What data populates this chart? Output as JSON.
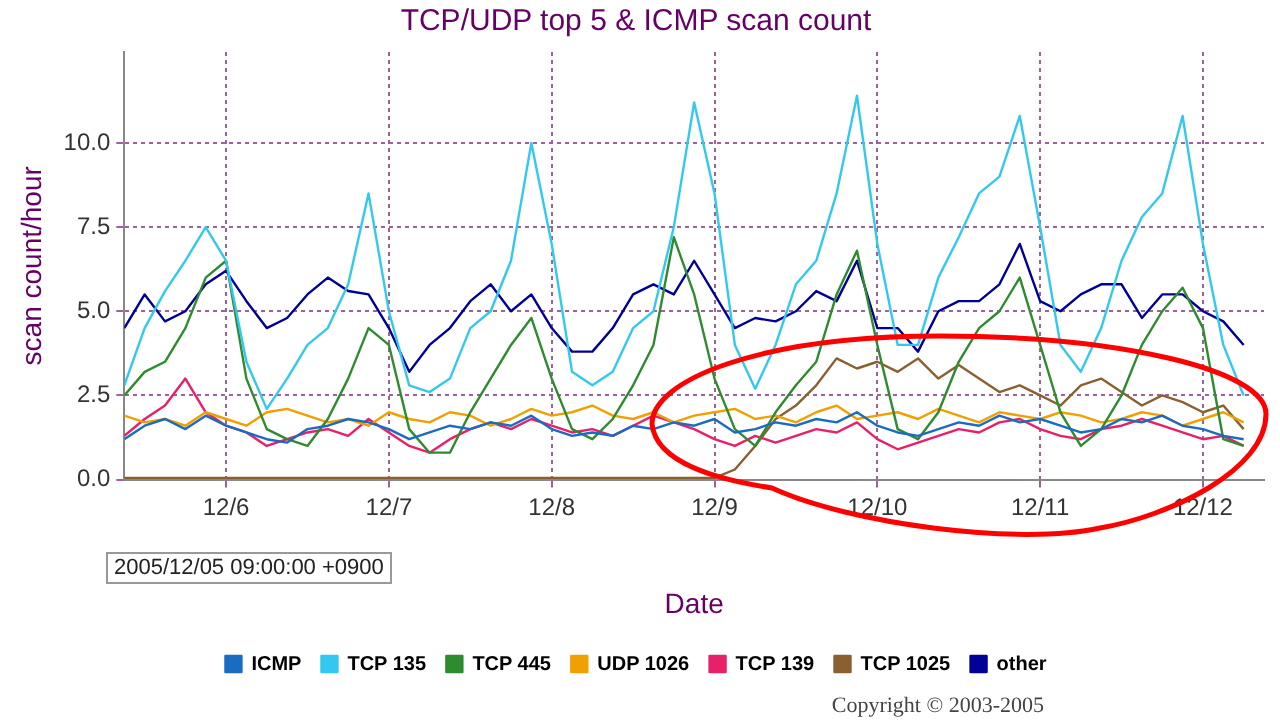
{
  "chart_data": {
    "type": "line",
    "title": "TCP/UDP top 5 & ICMP scan count",
    "xlabel": "Date",
    "ylabel": "scan count/hour",
    "annotations": [
      "2005/12/05 09:00:00 +0900",
      "Copyright © 2003-2005"
    ],
    "x": [
      "2005-12-05T09:00",
      "2005-12-05T12:00",
      "2005-12-05T15:00",
      "2005-12-05T18:00",
      "2005-12-05T21:00",
      "2005-12-06T00:00",
      "2005-12-06T03:00",
      "2005-12-06T06:00",
      "2005-12-06T09:00",
      "2005-12-06T12:00",
      "2005-12-06T15:00",
      "2005-12-06T18:00",
      "2005-12-06T21:00",
      "2005-12-07T00:00",
      "2005-12-07T03:00",
      "2005-12-07T06:00",
      "2005-12-07T09:00",
      "2005-12-07T12:00",
      "2005-12-07T15:00",
      "2005-12-07T18:00",
      "2005-12-07T21:00",
      "2005-12-08T00:00",
      "2005-12-08T03:00",
      "2005-12-08T06:00",
      "2005-12-08T09:00",
      "2005-12-08T12:00",
      "2005-12-08T15:00",
      "2005-12-08T18:00",
      "2005-12-08T21:00",
      "2005-12-09T00:00",
      "2005-12-09T03:00",
      "2005-12-09T06:00",
      "2005-12-09T09:00",
      "2005-12-09T12:00",
      "2005-12-09T15:00",
      "2005-12-09T18:00",
      "2005-12-09T21:00",
      "2005-12-10T00:00",
      "2005-12-10T03:00",
      "2005-12-10T06:00",
      "2005-12-10T09:00",
      "2005-12-10T12:00",
      "2005-12-10T15:00",
      "2005-12-10T18:00",
      "2005-12-10T21:00",
      "2005-12-11T00:00",
      "2005-12-11T03:00",
      "2005-12-11T06:00",
      "2005-12-11T09:00",
      "2005-12-11T12:00",
      "2005-12-11T15:00",
      "2005-12-11T18:00",
      "2005-12-11T21:00",
      "2005-12-12T00:00",
      "2005-12-12T03:00",
      "2005-12-12T06:00"
    ],
    "series": [
      {
        "name": "ICMP",
        "color": "#1a6cc0",
        "values": [
          1.2,
          1.6,
          1.8,
          1.5,
          1.9,
          1.6,
          1.4,
          1.2,
          1.1,
          1.5,
          1.6,
          1.8,
          1.7,
          1.5,
          1.2,
          1.4,
          1.6,
          1.5,
          1.7,
          1.6,
          1.9,
          1.5,
          1.3,
          1.4,
          1.3,
          1.6,
          1.5,
          1.7,
          1.6,
          1.8,
          1.4,
          1.5,
          1.7,
          1.6,
          1.8,
          1.7,
          2.0,
          1.6,
          1.4,
          1.3,
          1.5,
          1.7,
          1.6,
          1.9,
          1.7,
          1.8,
          1.6,
          1.4,
          1.5,
          1.8,
          1.7,
          1.9,
          1.6,
          1.5,
          1.3,
          1.2
        ]
      },
      {
        "name": "TCP 135",
        "color": "#33c8f0",
        "values": [
          2.8,
          4.5,
          5.6,
          6.5,
          7.5,
          6.5,
          3.5,
          2.1,
          3.0,
          4.0,
          4.5,
          5.8,
          8.5,
          5.0,
          2.8,
          2.6,
          3.0,
          4.5,
          5.0,
          6.5,
          10.0,
          7.0,
          3.2,
          2.8,
          3.2,
          4.5,
          5.0,
          7.5,
          11.2,
          8.5,
          4.0,
          2.7,
          4.0,
          5.8,
          6.5,
          8.5,
          11.4,
          7.0,
          4.0,
          4.0,
          6.0,
          7.2,
          8.5,
          9.0,
          10.8,
          7.5,
          4.0,
          3.2,
          4.5,
          6.5,
          7.8,
          8.5,
          10.8,
          7.0,
          4.0,
          2.5
        ]
      },
      {
        "name": "TCP 445",
        "color": "#2e8b2e",
        "values": [
          2.5,
          3.2,
          3.5,
          4.5,
          6.0,
          6.5,
          3.0,
          1.5,
          1.2,
          1.0,
          1.8,
          3.0,
          4.5,
          4.0,
          1.5,
          0.8,
          0.8,
          2.0,
          3.0,
          4.0,
          4.8,
          3.0,
          1.5,
          1.2,
          1.8,
          2.8,
          4.0,
          7.2,
          5.5,
          3.0,
          1.5,
          1.0,
          2.0,
          2.8,
          3.5,
          5.5,
          6.8,
          4.0,
          1.5,
          1.2,
          2.0,
          3.5,
          4.5,
          5.0,
          6.0,
          4.0,
          2.0,
          1.0,
          1.5,
          2.5,
          4.0,
          5.0,
          5.7,
          4.5,
          1.2,
          1.0
        ]
      },
      {
        "name": "UDP 1026",
        "color": "#f0a000",
        "values": [
          1.9,
          1.7,
          1.8,
          1.6,
          2.0,
          1.8,
          1.6,
          2.0,
          2.1,
          1.9,
          1.7,
          1.8,
          1.6,
          2.0,
          1.8,
          1.7,
          2.0,
          1.9,
          1.6,
          1.8,
          2.1,
          1.9,
          2.0,
          2.2,
          1.9,
          1.8,
          2.0,
          1.7,
          1.9,
          2.0,
          2.1,
          1.8,
          1.9,
          1.7,
          2.0,
          2.2,
          1.8,
          1.9,
          2.0,
          1.8,
          2.1,
          1.9,
          1.7,
          2.0,
          1.9,
          1.8,
          2.0,
          1.9,
          1.7,
          1.8,
          2.0,
          1.9,
          1.6,
          1.8,
          2.0,
          1.7
        ]
      },
      {
        "name": "TCP 139",
        "color": "#e8206a",
        "values": [
          1.3,
          1.8,
          2.2,
          3.0,
          2.0,
          1.6,
          1.4,
          1.0,
          1.2,
          1.4,
          1.5,
          1.3,
          1.8,
          1.4,
          1.0,
          0.8,
          1.2,
          1.5,
          1.7,
          1.5,
          1.8,
          1.6,
          1.4,
          1.5,
          1.3,
          1.6,
          1.9,
          1.7,
          1.5,
          1.2,
          1.0,
          1.3,
          1.1,
          1.3,
          1.5,
          1.4,
          1.7,
          1.2,
          0.9,
          1.1,
          1.3,
          1.5,
          1.4,
          1.7,
          1.8,
          1.5,
          1.3,
          1.2,
          1.5,
          1.6,
          1.8,
          1.6,
          1.4,
          1.2,
          1.3,
          1.0
        ]
      },
      {
        "name": "TCP 1025",
        "color": "#8b6030",
        "values": [
          0.05,
          0.05,
          0.05,
          0.05,
          0.05,
          0.05,
          0.05,
          0.05,
          0.05,
          0.05,
          0.05,
          0.05,
          0.05,
          0.05,
          0.05,
          0.05,
          0.05,
          0.05,
          0.05,
          0.05,
          0.05,
          0.05,
          0.05,
          0.05,
          0.05,
          0.05,
          0.05,
          0.05,
          0.05,
          0.05,
          0.3,
          1.0,
          1.8,
          2.2,
          2.8,
          3.6,
          3.3,
          3.5,
          3.2,
          3.6,
          3.0,
          3.4,
          3.0,
          2.6,
          2.8,
          2.5,
          2.2,
          2.8,
          3.0,
          2.6,
          2.2,
          2.5,
          2.3,
          2.0,
          2.2,
          1.5
        ]
      },
      {
        "name": "other",
        "color": "#000099",
        "values": [
          4.5,
          5.5,
          4.7,
          5.0,
          5.8,
          6.2,
          5.3,
          4.5,
          4.8,
          5.5,
          6.0,
          5.6,
          5.5,
          4.5,
          3.2,
          4.0,
          4.5,
          5.3,
          5.8,
          5.0,
          5.5,
          4.5,
          3.8,
          3.8,
          4.5,
          5.5,
          5.8,
          5.5,
          6.5,
          5.5,
          4.5,
          4.8,
          4.7,
          5.0,
          5.6,
          5.3,
          6.5,
          4.5,
          4.5,
          3.8,
          5.0,
          5.3,
          5.3,
          5.8,
          7.0,
          5.3,
          5.0,
          5.5,
          5.8,
          5.8,
          4.8,
          5.5,
          5.5,
          5.0,
          4.7,
          4.0
        ]
      }
    ],
    "xlim": [
      "2005-12-05T09:00",
      "2005-12-12T09:00"
    ],
    "ylim": [
      0,
      12.7
    ],
    "xticks": [
      {
        "value": "2005-12-06",
        "label": "12/6"
      },
      {
        "value": "2005-12-07",
        "label": "12/7"
      },
      {
        "value": "2005-12-08",
        "label": "12/8"
      },
      {
        "value": "2005-12-09",
        "label": "12/9"
      },
      {
        "value": "2005-12-10",
        "label": "12/10"
      },
      {
        "value": "2005-12-11",
        "label": "12/11"
      },
      {
        "value": "2005-12-12",
        "label": "12/12"
      }
    ],
    "yticks": [
      {
        "value": 0,
        "label": "0.0"
      },
      {
        "value": 2.5,
        "label": "2.5"
      },
      {
        "value": 5,
        "label": "5.0"
      },
      {
        "value": 7.5,
        "label": "7.5"
      },
      {
        "value": 10,
        "label": "10.0"
      }
    ],
    "grid": true,
    "legend": "bottom",
    "marker": "none"
  }
}
